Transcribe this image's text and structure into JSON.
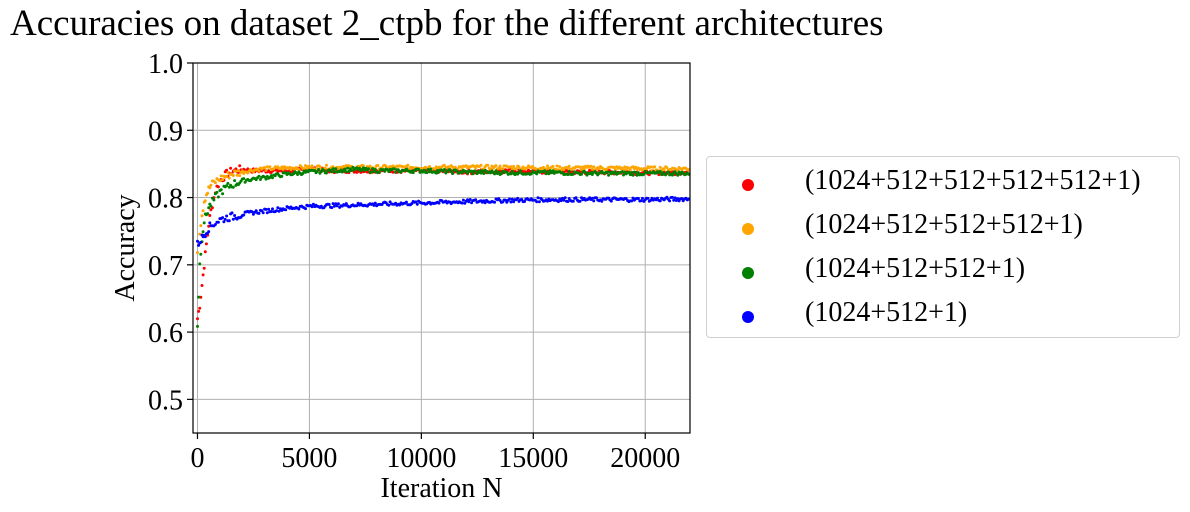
{
  "chart_data": {
    "type": "scatter",
    "title": "Accuracies on dataset 2_ctpb for the different architectures",
    "xlabel": "Iteration N",
    "ylabel": "Accuracy",
    "xlim": [
      -200,
      22000
    ],
    "ylim": [
      0.45,
      1.0
    ],
    "xticks": [
      0,
      5000,
      10000,
      15000,
      20000
    ],
    "xtick_labels": [
      "0",
      "5000",
      "10000",
      "15000",
      "20000"
    ],
    "yticks": [
      0.5,
      0.6,
      0.7,
      0.8,
      0.9,
      1.0
    ],
    "ytick_labels": [
      "0.5",
      "0.6",
      "0.7",
      "0.8",
      "0.9",
      "1.0"
    ],
    "grid": true,
    "legend_position": "outside-right",
    "series": [
      {
        "name": "(1024+512+512+512+512+1)",
        "color": "#ff0000",
        "x": [
          0,
          100,
          200,
          300,
          400,
          500,
          600,
          800,
          1000,
          1300,
          1600,
          2000,
          2500,
          3000,
          4000,
          5000,
          6000,
          7000,
          8000,
          10000,
          12000,
          14000,
          16000,
          18000,
          20000,
          22000
        ],
        "y": [
          0.62,
          0.64,
          0.67,
          0.7,
          0.73,
          0.76,
          0.78,
          0.81,
          0.825,
          0.835,
          0.84,
          0.842,
          0.84,
          0.84,
          0.84,
          0.842,
          0.84,
          0.84,
          0.84,
          0.84,
          0.838,
          0.84,
          0.838,
          0.838,
          0.837,
          0.837
        ]
      },
      {
        "name": "(1024+512+512+512+1)",
        "color": "#ffa500",
        "x": [
          0,
          100,
          200,
          300,
          400,
          500,
          600,
          800,
          1000,
          1300,
          1600,
          2000,
          2500,
          3000,
          4000,
          5000,
          6000,
          7000,
          8000,
          10000,
          12000,
          14000,
          16000,
          18000,
          20000,
          22000
        ],
        "y": [
          0.72,
          0.75,
          0.775,
          0.795,
          0.805,
          0.812,
          0.818,
          0.824,
          0.828,
          0.832,
          0.836,
          0.838,
          0.841,
          0.843,
          0.844,
          0.845,
          0.845,
          0.845,
          0.845,
          0.845,
          0.845,
          0.845,
          0.844,
          0.844,
          0.843,
          0.843
        ]
      },
      {
        "name": "(1024+512+512+1)",
        "color": "#008000",
        "x": [
          0,
          100,
          200,
          300,
          400,
          500,
          600,
          800,
          1000,
          1300,
          1600,
          2000,
          2500,
          3000,
          4000,
          5000,
          6000,
          7000,
          8000,
          10000,
          12000,
          14000,
          16000,
          18000,
          20000,
          22000
        ],
        "y": [
          0.61,
          0.7,
          0.74,
          0.765,
          0.775,
          0.785,
          0.79,
          0.8,
          0.808,
          0.815,
          0.82,
          0.825,
          0.828,
          0.83,
          0.835,
          0.838,
          0.84,
          0.842,
          0.84,
          0.84,
          0.838,
          0.837,
          0.837,
          0.836,
          0.836,
          0.836
        ]
      },
      {
        "name": "(1024+512+1)",
        "color": "#0000ff",
        "x": [
          0,
          100,
          200,
          300,
          400,
          500,
          600,
          800,
          1000,
          1300,
          1600,
          2000,
          2500,
          3000,
          4000,
          5000,
          6000,
          7000,
          8000,
          10000,
          12000,
          14000,
          16000,
          18000,
          20000,
          22000
        ],
        "y": [
          0.73,
          0.735,
          0.74,
          0.745,
          0.75,
          0.755,
          0.758,
          0.763,
          0.767,
          0.77,
          0.772,
          0.775,
          0.778,
          0.78,
          0.784,
          0.787,
          0.788,
          0.789,
          0.79,
          0.792,
          0.794,
          0.796,
          0.797,
          0.797,
          0.797,
          0.798
        ]
      }
    ]
  }
}
